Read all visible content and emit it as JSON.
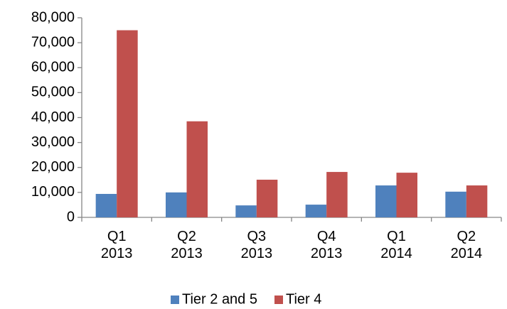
{
  "chart_data": {
    "type": "bar",
    "categories": [
      "Q1 2013",
      "Q2 2013",
      "Q3 2013",
      "Q4 2013",
      "Q1 2014",
      "Q2 2014"
    ],
    "series": [
      {
        "name": "Tier 2 and 5",
        "color": "#4f81bd",
        "values": [
          9400,
          10000,
          4800,
          5100,
          12800,
          10300
        ]
      },
      {
        "name": "Tier 4",
        "color": "#c0504d",
        "values": [
          75000,
          38500,
          15100,
          18200,
          17900,
          12800
        ]
      }
    ],
    "ylim": [
      0,
      80000
    ],
    "yticks": [
      0,
      {
        "value": 10000,
        "label": "10,000"
      },
      {
        "value": 20000,
        "label": "20,000"
      },
      {
        "value": 30000,
        "label": "30,000"
      },
      {
        "value": 40000,
        "label": "40,000"
      },
      {
        "value": 50000,
        "label": "50,000"
      },
      {
        "value": 60000,
        "label": "60,000"
      },
      {
        "value": 70000,
        "label": "70,000"
      },
      {
        "value": 80000,
        "label": "80,000"
      }
    ],
    "grid": false,
    "legend": "bottom"
  }
}
